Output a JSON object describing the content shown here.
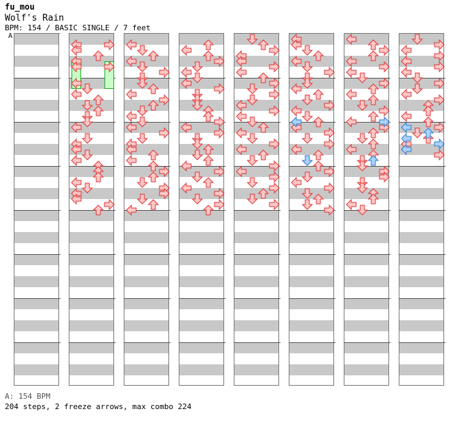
{
  "header": {
    "author": "fu_mou",
    "title": "Wolf's Rain",
    "info": "BPM: 154 / BASIC SINGLE / 7 feet",
    "marker": "A"
  },
  "footer": {
    "bpm_line": "A: 154 BPM",
    "summary": "204 steps, 2 freeze arrows, max combo 224"
  },
  "colors": {
    "tap_fill": "#ffc8c8",
    "tap_stroke": "#dd3333",
    "shock_fill": "#aad4ff",
    "shock_stroke": "#3377cc",
    "freeze_fill": "#c8ffc8",
    "freeze_stroke": "#22aa22"
  },
  "chart_data": {
    "type": "step-chart",
    "rows_per_column": 32,
    "lanes": [
      "left",
      "down",
      "up",
      "right"
    ],
    "columns": [
      {
        "notes": []
      },
      {
        "notes": [
          [
            1,
            "L"
          ],
          [
            1,
            "R"
          ],
          [
            2,
            "L"
          ],
          [
            3,
            "U"
          ],
          [
            4,
            "L"
          ],
          [
            5,
            "L"
          ],
          [
            5,
            "R"
          ],
          [
            8,
            "L"
          ],
          [
            9,
            "D"
          ],
          [
            10,
            "L"
          ],
          [
            11,
            "U"
          ],
          [
            12,
            "D"
          ],
          [
            13,
            "U"
          ],
          [
            14,
            "D"
          ],
          [
            15,
            "D"
          ],
          [
            16,
            "L"
          ],
          [
            18,
            "D"
          ],
          [
            19,
            "L"
          ],
          [
            20,
            "L"
          ],
          [
            21,
            "D"
          ],
          [
            22,
            "L"
          ],
          [
            23,
            "U"
          ],
          [
            24,
            "U"
          ],
          [
            25,
            "U"
          ],
          [
            26,
            "L"
          ],
          [
            27,
            "D"
          ],
          [
            28,
            "L"
          ],
          [
            29,
            "L"
          ],
          [
            30,
            "R"
          ],
          [
            31,
            "U"
          ]
        ],
        "freezes": [
          [
            4,
            9,
            "L"
          ],
          [
            4,
            9,
            "R"
          ]
        ]
      },
      {
        "notes": [
          [
            1,
            "L"
          ],
          [
            2,
            "D"
          ],
          [
            3,
            "U"
          ],
          [
            4,
            "L"
          ],
          [
            5,
            "D"
          ],
          [
            6,
            "R"
          ],
          [
            7,
            "D"
          ],
          [
            8,
            "D"
          ],
          [
            9,
            "U"
          ],
          [
            10,
            "L"
          ],
          [
            11,
            "R"
          ],
          [
            12,
            "U"
          ],
          [
            13,
            "D"
          ],
          [
            14,
            "L"
          ],
          [
            15,
            "D"
          ],
          [
            16,
            "L"
          ],
          [
            17,
            "R"
          ],
          [
            18,
            "D"
          ],
          [
            19,
            "L"
          ],
          [
            20,
            "L"
          ],
          [
            21,
            "U"
          ],
          [
            22,
            "L"
          ],
          [
            23,
            "U"
          ],
          [
            24,
            "R"
          ],
          [
            25,
            "U"
          ],
          [
            26,
            "D"
          ],
          [
            27,
            "R"
          ],
          [
            28,
            "R"
          ],
          [
            29,
            "D"
          ],
          [
            30,
            "U"
          ],
          [
            31,
            "L"
          ]
        ]
      },
      {
        "notes": [
          [
            1,
            "U"
          ],
          [
            2,
            "L"
          ],
          [
            3,
            "U"
          ],
          [
            4,
            "R"
          ],
          [
            5,
            "D"
          ],
          [
            6,
            "L"
          ],
          [
            7,
            "D"
          ],
          [
            8,
            "L"
          ],
          [
            9,
            "R"
          ],
          [
            10,
            "D"
          ],
          [
            11,
            "D"
          ],
          [
            12,
            "D"
          ],
          [
            13,
            "U"
          ],
          [
            14,
            "U"
          ],
          [
            15,
            "R"
          ],
          [
            16,
            "L"
          ],
          [
            17,
            "R"
          ],
          [
            18,
            "D"
          ],
          [
            19,
            "D"
          ],
          [
            20,
            "U"
          ],
          [
            21,
            "D"
          ],
          [
            22,
            "U"
          ],
          [
            23,
            "L"
          ],
          [
            24,
            "R"
          ],
          [
            25,
            "D"
          ],
          [
            26,
            "U"
          ],
          [
            27,
            "L"
          ],
          [
            28,
            "R"
          ],
          [
            29,
            "D"
          ],
          [
            30,
            "R"
          ],
          [
            31,
            "U"
          ]
        ]
      },
      {
        "notes": [
          [
            0,
            "D"
          ],
          [
            1,
            "U"
          ],
          [
            2,
            "R"
          ],
          [
            3,
            "L"
          ],
          [
            4,
            "L"
          ],
          [
            5,
            "R"
          ],
          [
            6,
            "L"
          ],
          [
            7,
            "U"
          ],
          [
            8,
            "R"
          ],
          [
            9,
            "D"
          ],
          [
            10,
            "R"
          ],
          [
            11,
            "D"
          ],
          [
            12,
            "L"
          ],
          [
            13,
            "R"
          ],
          [
            14,
            "L"
          ],
          [
            15,
            "D"
          ],
          [
            16,
            "U"
          ],
          [
            17,
            "L"
          ],
          [
            18,
            "D"
          ],
          [
            19,
            "R"
          ],
          [
            20,
            "L"
          ],
          [
            21,
            "U"
          ],
          [
            22,
            "D"
          ],
          [
            23,
            "R"
          ],
          [
            24,
            "L"
          ],
          [
            25,
            "R"
          ],
          [
            26,
            "D"
          ],
          [
            27,
            "R"
          ],
          [
            28,
            "U"
          ],
          [
            29,
            "D"
          ],
          [
            30,
            "R"
          ]
        ]
      },
      {
        "notes": [
          [
            0,
            "L"
          ],
          [
            1,
            "L"
          ],
          [
            2,
            "D"
          ],
          [
            3,
            "U"
          ],
          [
            4,
            "L"
          ],
          [
            5,
            "D"
          ],
          [
            6,
            "R"
          ],
          [
            7,
            "D"
          ],
          [
            8,
            "D"
          ],
          [
            9,
            "L"
          ],
          [
            10,
            "U"
          ],
          [
            11,
            "D"
          ],
          [
            12,
            "R"
          ],
          [
            13,
            "L"
          ],
          [
            14,
            "D"
          ],
          [
            15,
            "U"
          ],
          [
            16,
            "L"
          ],
          [
            17,
            "R"
          ],
          [
            18,
            "D"
          ],
          [
            19,
            "R"
          ],
          [
            20,
            "L"
          ],
          [
            21,
            "U"
          ],
          [
            22,
            "D"
          ],
          [
            23,
            "U"
          ],
          [
            24,
            "R"
          ],
          [
            25,
            "D"
          ],
          [
            26,
            "L"
          ],
          [
            27,
            "R"
          ],
          [
            28,
            "D"
          ],
          [
            29,
            "U"
          ],
          [
            30,
            "D"
          ],
          [
            31,
            "R"
          ]
        ],
        "shocks": [
          [
            15,
            "L"
          ],
          [
            22,
            "D"
          ]
        ]
      },
      {
        "notes": [
          [
            0,
            "L"
          ],
          [
            1,
            "U"
          ],
          [
            2,
            "R"
          ],
          [
            3,
            "U"
          ],
          [
            4,
            "L"
          ],
          [
            5,
            "R"
          ],
          [
            6,
            "L"
          ],
          [
            7,
            "D"
          ],
          [
            8,
            "R"
          ],
          [
            9,
            "U"
          ],
          [
            10,
            "L"
          ],
          [
            11,
            "U"
          ],
          [
            12,
            "D"
          ],
          [
            13,
            "R"
          ],
          [
            14,
            "U"
          ],
          [
            15,
            "L"
          ],
          [
            16,
            "R"
          ],
          [
            17,
            "U"
          ],
          [
            18,
            "D"
          ],
          [
            19,
            "U"
          ],
          [
            20,
            "L"
          ],
          [
            21,
            "U"
          ],
          [
            22,
            "D"
          ],
          [
            23,
            "D"
          ],
          [
            24,
            "R"
          ],
          [
            25,
            "R"
          ],
          [
            26,
            "D"
          ],
          [
            27,
            "D"
          ],
          [
            28,
            "U"
          ],
          [
            29,
            "U"
          ],
          [
            30,
            "L"
          ],
          [
            31,
            "D"
          ]
        ],
        "shocks": [
          [
            15,
            "R"
          ],
          [
            22,
            "U"
          ]
        ]
      },
      {
        "notes": [
          [
            0,
            "D"
          ],
          [
            1,
            "R"
          ],
          [
            2,
            "L"
          ],
          [
            3,
            "R"
          ],
          [
            4,
            "L"
          ],
          [
            5,
            "R"
          ],
          [
            6,
            "L"
          ],
          [
            7,
            "D"
          ],
          [
            8,
            "R"
          ],
          [
            9,
            "D"
          ],
          [
            10,
            "L"
          ],
          [
            11,
            "R"
          ],
          [
            12,
            "U"
          ],
          [
            13,
            "U"
          ],
          [
            14,
            "L"
          ],
          [
            15,
            "U"
          ],
          [
            16,
            "R"
          ],
          [
            17,
            "D"
          ],
          [
            18,
            "U"
          ],
          [
            19,
            "L"
          ],
          [
            20,
            "L"
          ],
          [
            21,
            "R"
          ]
        ],
        "shocks": [
          [
            16,
            "L"
          ],
          [
            17,
            "U"
          ],
          [
            18,
            "L"
          ],
          [
            19,
            "R"
          ],
          [
            20,
            "L"
          ]
        ]
      }
    ]
  }
}
